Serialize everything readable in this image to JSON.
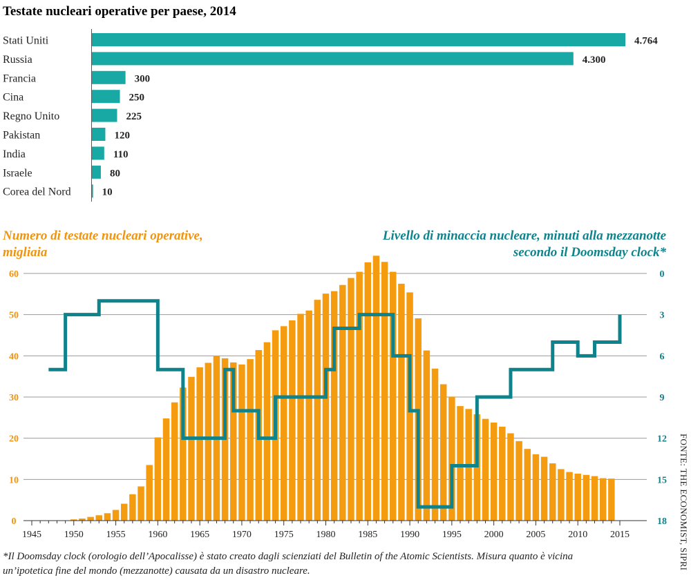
{
  "colors": {
    "teal": "#18a9a4",
    "teal_dark": "#0f838c",
    "orange": "#f59b10",
    "orange_text": "#ef9410",
    "grid": "#9a9a9a"
  },
  "chart_data": [
    {
      "type": "bar",
      "orientation": "horizontal",
      "title": "Testate nucleari operative per paese, 2014",
      "categories": [
        "Stati Uniti",
        "Russia",
        "Francia",
        "Cina",
        "Regno Unito",
        "Pakistan",
        "India",
        "Israele",
        "Corea del Nord"
      ],
      "values": [
        4764,
        4300,
        300,
        250,
        225,
        120,
        110,
        80,
        10
      ],
      "value_labels": [
        "4.764",
        "4.300",
        "300",
        "250",
        "225",
        "120",
        "110",
        "80",
        "10"
      ],
      "xlim": [
        0,
        4764
      ]
    },
    {
      "type": "bar+line",
      "left_axis_title_line1": "Numero di testate nucleari operative,",
      "left_axis_title_line2": "migliaia",
      "right_axis_title_line1": "Livello di minaccia nucleare, minuti alla mezzanotte",
      "right_axis_title_line2": "secondo il Doomsday clock*",
      "x_ticks": [
        "1945",
        "1950",
        "1955",
        "1960",
        "1965",
        "1970",
        "1975",
        "1980",
        "1985",
        "1990",
        "1995",
        "2000",
        "2005",
        "2010",
        "2015"
      ],
      "y_left_ticks": [
        "0",
        "10",
        "20",
        "30",
        "40",
        "50",
        "60"
      ],
      "y_right_ticks": [
        "0",
        "3",
        "6",
        "9",
        "12",
        "15",
        "18"
      ],
      "ylim_left": [
        0,
        60
      ],
      "ylim_right_minutes": [
        0,
        18
      ],
      "xlim": [
        1945,
        2015
      ],
      "series": [
        {
          "name": "Testate nucleari operative (migliaia)",
          "type": "bar",
          "x": [
            1945,
            1946,
            1947,
            1948,
            1949,
            1950,
            1951,
            1952,
            1953,
            1954,
            1955,
            1956,
            1957,
            1958,
            1959,
            1960,
            1961,
            1962,
            1963,
            1964,
            1965,
            1966,
            1967,
            1968,
            1969,
            1970,
            1971,
            1972,
            1973,
            1974,
            1975,
            1976,
            1977,
            1978,
            1979,
            1980,
            1981,
            1982,
            1983,
            1984,
            1985,
            1986,
            1987,
            1988,
            1989,
            1990,
            1991,
            1992,
            1993,
            1994,
            1995,
            1996,
            1997,
            1998,
            1999,
            2000,
            2001,
            2002,
            2003,
            2004,
            2005,
            2006,
            2007,
            2008,
            2009,
            2010,
            2011,
            2012,
            2013,
            2014
          ],
          "values": [
            0,
            0,
            0,
            0,
            0,
            0.3,
            0.5,
            0.9,
            1.3,
            1.8,
            2.6,
            4.1,
            6.4,
            8.3,
            13.5,
            20.2,
            24.8,
            28.7,
            32.3,
            34.9,
            37.2,
            38.3,
            39.9,
            39.4,
            38.4,
            37.9,
            39.2,
            41.4,
            43.3,
            46.2,
            47.2,
            48.6,
            50.2,
            51.0,
            53.6,
            55.1,
            55.7,
            57.2,
            58.9,
            60.4,
            62.7,
            64.3,
            62.8,
            60.4,
            57.5,
            55.4,
            49.1,
            41.3,
            36.9,
            33.1,
            30.1,
            27.8,
            27.1,
            25.8,
            24.7,
            23.8,
            22.8,
            21.2,
            19.3,
            17.4,
            16.1,
            15.5,
            13.9,
            12.5,
            11.8,
            11.4,
            11.1,
            10.8,
            10.3,
            10.2
          ]
        },
        {
          "name": "Doomsday clock (minuti alla mezzanotte)",
          "type": "step",
          "x": [
            1947,
            1949,
            1953,
            1960,
            1963,
            1968,
            1969,
            1972,
            1974,
            1980,
            1981,
            1984,
            1988,
            1990,
            1991,
            1995,
            1998,
            2002,
            2007,
            2010,
            2012,
            2015
          ],
          "values": [
            7,
            3,
            2,
            7,
            12,
            7,
            10,
            12,
            9,
            7,
            4,
            3,
            6,
            10,
            17,
            14,
            9,
            7,
            5,
            6,
            5,
            3
          ]
        }
      ]
    }
  ],
  "footnote_line1": "*Il Doomsday clock (orologio dell’Apocalisse) è stato creato dagli scienziati del Bulletin of the Atomic Scientists. Misura quanto è vicina",
  "footnote_line2": "un’ipotetica fine del mondo (mezzanotte) causata da un disastro nucleare.",
  "source": "FONTE: THE ECONOMIST, SIPRI"
}
